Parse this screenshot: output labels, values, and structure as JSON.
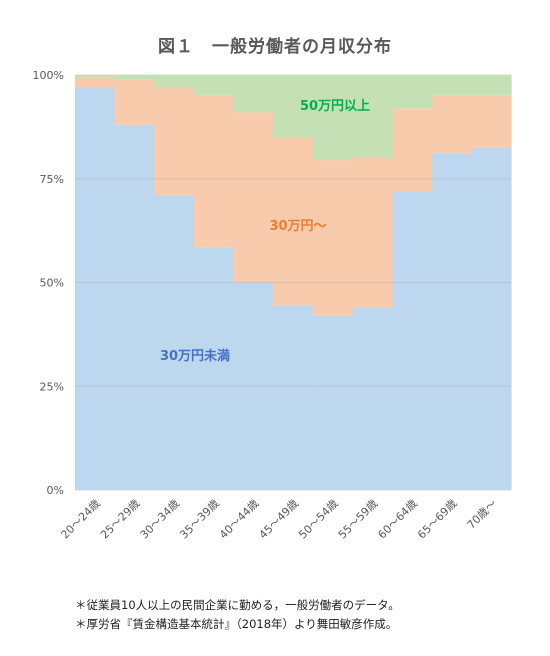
{
  "chart_data": {
    "type": "area",
    "stacked": true,
    "percent": true,
    "title": "図１　一般労働者の月収分布",
    "categories": [
      "20～24歳",
      "25～29歳",
      "30～34歳",
      "35～39歳",
      "40～44歳",
      "45～49歳",
      "50～54歳",
      "55～59歳",
      "60～64歳",
      "65～69歳",
      "70歳～"
    ],
    "series": [
      {
        "name": "30万円未満",
        "values": [
          97,
          88,
          71,
          58.5,
          50,
          44.5,
          42,
          44,
          72,
          81,
          82.5
        ]
      },
      {
        "name": "30万円～",
        "values": [
          2.5,
          11,
          26,
          36.5,
          41,
          40.5,
          37.5,
          36,
          20,
          14,
          12.5
        ]
      },
      {
        "name": "50万円以上",
        "values": [
          0.5,
          1,
          3,
          5,
          9,
          15,
          20.5,
          20,
          8,
          5,
          5
        ]
      }
    ],
    "ylim": [
      0,
      100
    ],
    "yticks": [
      "0%",
      "25%",
      "50%",
      "75%",
      "100%"
    ],
    "colors": {
      "under30": "#bdd7ee",
      "30to50": "#f8cbad",
      "over50": "#c5e0b4",
      "label_under30": "#4472c4",
      "label_30to50": "#ed7d31",
      "label_over50": "#00b050"
    },
    "grid": true
  },
  "notes": [
    "＊従業員10人以上の民間企業に勤める，一般労働者のデータ。",
    "＊厚労省『賃金構造基本統計』（2018年）より舞田敏彦作成。"
  ]
}
